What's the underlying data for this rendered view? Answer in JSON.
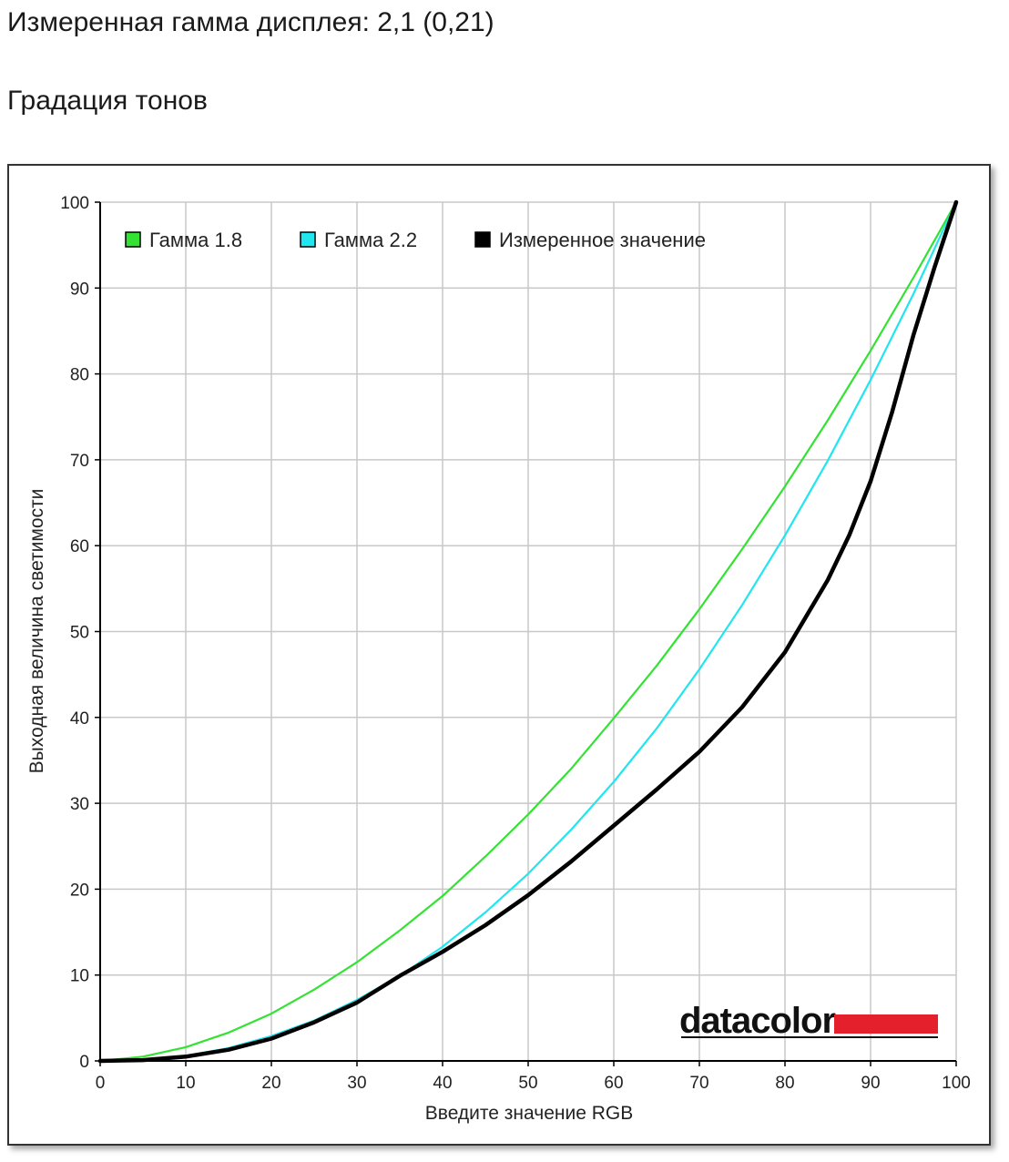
{
  "header": {
    "measured_gamma": "Измеренная гамма дисплея: 2,1 (0,21)",
    "section_title": "Градация тонов"
  },
  "logo": {
    "text": "datacolor",
    "accent_color": "#e3202c"
  },
  "colors": {
    "gamma18": "#33e233",
    "gamma22": "#21e5ef",
    "measured": "#000000",
    "grid": "#c8c8c8"
  },
  "chart_data": {
    "type": "line",
    "title": "",
    "xlabel": "Введите значение RGB",
    "ylabel": "Выходная величина светимости",
    "xlim": [
      0,
      100
    ],
    "ylim": [
      0,
      100
    ],
    "xticks": [
      "0",
      "10",
      "20",
      "30",
      "40",
      "50",
      "60",
      "70",
      "80",
      "90",
      "100"
    ],
    "yticks": [
      "0",
      "10",
      "20",
      "30",
      "40",
      "50",
      "60",
      "70",
      "80",
      "90",
      "100"
    ],
    "grid": true,
    "legend_position": "top-left",
    "series": [
      {
        "name": "Гамма 1.8",
        "color": "#33e233",
        "x": [
          0,
          5,
          10,
          15,
          20,
          25,
          30,
          35,
          40,
          45,
          50,
          55,
          60,
          65,
          70,
          75,
          80,
          85,
          90,
          95,
          100
        ],
        "y": [
          0,
          0.5,
          1.6,
          3.3,
          5.5,
          8.3,
          11.5,
          15.2,
          19.2,
          23.8,
          28.7,
          34.0,
          39.9,
          46.0,
          52.6,
          59.6,
          66.9,
          74.6,
          82.7,
          91.2,
          100
        ]
      },
      {
        "name": "Гамма 2.2",
        "color": "#21e5ef",
        "x": [
          0,
          5,
          10,
          15,
          20,
          25,
          30,
          35,
          40,
          45,
          50,
          55,
          60,
          65,
          70,
          75,
          80,
          85,
          90,
          95,
          100
        ],
        "y": [
          0,
          0.1,
          0.6,
          1.5,
          2.9,
          4.7,
          7.1,
          9.9,
          13.3,
          17.3,
          21.8,
          26.9,
          32.5,
          38.7,
          45.6,
          53.1,
          61.2,
          69.9,
          79.3,
          89.3,
          100
        ]
      },
      {
        "name": "Измеренное значение",
        "color": "#000000",
        "x": [
          0,
          5,
          10,
          15,
          20,
          25,
          30,
          35,
          40,
          45,
          50,
          55,
          60,
          65,
          70,
          75,
          80,
          85,
          87.5,
          90,
          92.5,
          95,
          97.5,
          100
        ],
        "y": [
          0,
          0.1,
          0.5,
          1.3,
          2.6,
          4.5,
          6.8,
          9.9,
          12.7,
          15.8,
          19.3,
          23.2,
          27.4,
          31.6,
          36.0,
          41.2,
          47.6,
          56.0,
          61.2,
          67.5,
          75.5,
          84.5,
          92.5,
          100
        ]
      }
    ]
  }
}
